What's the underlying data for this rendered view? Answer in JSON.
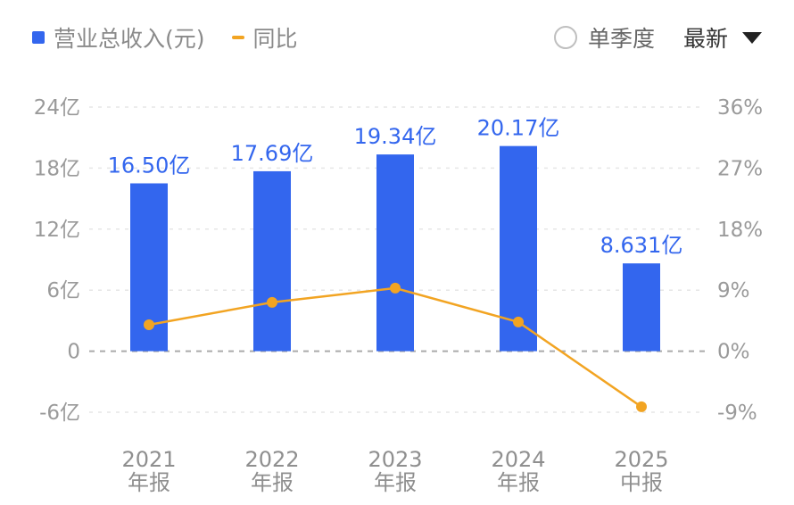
{
  "legend": {
    "bar_label": "营业总收入(元)",
    "line_label": "同比"
  },
  "controls": {
    "quarter_toggle": "单季度",
    "sort_select": "最新"
  },
  "colors": {
    "bar": "#3366ee",
    "line": "#f2a422",
    "grid": "#e6e6e6",
    "zero_line": "#aaaaaa"
  },
  "chart_data": {
    "type": "bar",
    "categories": [
      [
        "2021",
        "年报"
      ],
      [
        "2022",
        "年报"
      ],
      [
        "2023",
        "年报"
      ],
      [
        "2024",
        "年报"
      ],
      [
        "2025",
        "中报"
      ]
    ],
    "series": [
      {
        "name": "营业总收入(元)",
        "type": "bar",
        "axis": "left",
        "values": [
          16.5,
          17.69,
          19.34,
          20.17,
          8.631
        ],
        "labels": [
          "16.50亿",
          "17.69亿",
          "19.34亿",
          "20.17亿",
          "8.631亿"
        ]
      },
      {
        "name": "同比",
        "type": "line",
        "axis": "right",
        "values": [
          3.9,
          7.2,
          9.3,
          4.3,
          -8.2
        ]
      }
    ],
    "y_left": {
      "min": -6,
      "max": 24,
      "ticks": [
        24,
        18,
        12,
        6,
        0,
        -6
      ],
      "tick_labels": [
        "24亿",
        "18亿",
        "12亿",
        "6亿",
        "0",
        "-6亿"
      ]
    },
    "y_right": {
      "min": -9,
      "max": 36,
      "ticks": [
        36,
        27,
        18,
        9,
        0,
        -9
      ],
      "tick_labels": [
        "36%",
        "27%",
        "18%",
        "9%",
        "0%",
        "-9%"
      ]
    },
    "grid": true,
    "legend_position": "top-left"
  }
}
